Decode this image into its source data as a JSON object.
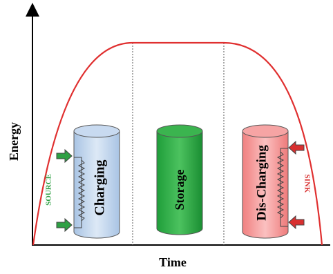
{
  "axes": {
    "y_label": "Energy",
    "x_label": "Time"
  },
  "stages": [
    {
      "label": "Charging"
    },
    {
      "label": "Storage"
    },
    {
      "label": "Dis-Charging"
    }
  ],
  "source_label": "SOURCE",
  "sink_label": "SINK"
}
